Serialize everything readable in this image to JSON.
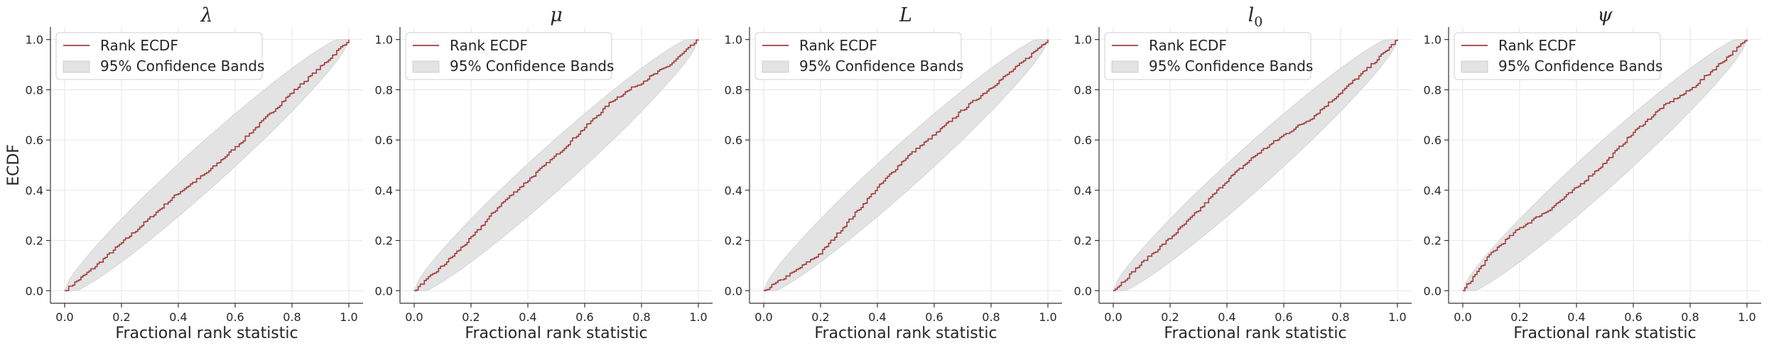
{
  "colors": {
    "ecdf_line": "#a33a3a",
    "band_fill": "#e3e3e3",
    "band_edge": "#c8c8c8",
    "grid": "#e6e6e6",
    "axis": "#333333"
  },
  "chart_data": [
    {
      "type": "line",
      "title": "λ",
      "xlabel": "Fractional rank statistic",
      "ylabel": "ECDF",
      "xlim": [
        -0.05,
        1.05
      ],
      "ylim": [
        -0.05,
        1.05
      ],
      "xticks": [
        "0.0",
        "0.2",
        "0.4",
        "0.6",
        "0.8",
        "1.0"
      ],
      "yticks": [
        "0.0",
        "0.2",
        "0.4",
        "0.6",
        "0.8",
        "1.0"
      ],
      "grid": true,
      "legend": {
        "placement": "top-left",
        "line_label": "Rank ECDF",
        "band_label": "95% Confidence Bands"
      },
      "series": [
        {
          "name": "Rank ECDF",
          "x": [
            0.0,
            0.1,
            0.2,
            0.3,
            0.4,
            0.5,
            0.6,
            0.7,
            0.8,
            0.9,
            1.0
          ],
          "y": [
            0.0,
            0.09,
            0.19,
            0.29,
            0.39,
            0.47,
            0.57,
            0.68,
            0.79,
            0.89,
            1.0
          ]
        }
      ]
    },
    {
      "type": "line",
      "title": "μ",
      "xlabel": "Fractional rank statistic",
      "ylabel": "",
      "xlim": [
        -0.05,
        1.05
      ],
      "ylim": [
        -0.05,
        1.05
      ],
      "xticks": [
        "0.0",
        "0.2",
        "0.4",
        "0.6",
        "0.8",
        "1.0"
      ],
      "yticks": [
        "0.0",
        "0.2",
        "0.4",
        "0.6",
        "0.8",
        "1.0"
      ],
      "grid": true,
      "legend": {
        "placement": "top-left",
        "line_label": "Rank ECDF",
        "band_label": "95% Confidence Bands"
      },
      "series": [
        {
          "name": "Rank ECDF",
          "x": [
            0.0,
            0.1,
            0.2,
            0.3,
            0.4,
            0.5,
            0.6,
            0.7,
            0.8,
            0.9,
            1.0
          ],
          "y": [
            0.0,
            0.1,
            0.21,
            0.34,
            0.44,
            0.54,
            0.65,
            0.76,
            0.83,
            0.9,
            1.0
          ]
        }
      ]
    },
    {
      "type": "line",
      "title": "L",
      "xlabel": "Fractional rank statistic",
      "ylabel": "",
      "xlim": [
        -0.05,
        1.05
      ],
      "ylim": [
        -0.05,
        1.05
      ],
      "xticks": [
        "0.0",
        "0.2",
        "0.4",
        "0.6",
        "0.8",
        "1.0"
      ],
      "yticks": [
        "0.0",
        "0.2",
        "0.4",
        "0.6",
        "0.8",
        "1.0"
      ],
      "grid": true,
      "legend": {
        "placement": "top-left",
        "line_label": "Rank ECDF",
        "band_label": "95% Confidence Bands"
      },
      "series": [
        {
          "name": "Rank ECDF",
          "x": [
            0.0,
            0.1,
            0.2,
            0.3,
            0.4,
            0.5,
            0.6,
            0.7,
            0.8,
            0.9,
            1.0
          ],
          "y": [
            0.0,
            0.07,
            0.15,
            0.28,
            0.41,
            0.53,
            0.62,
            0.72,
            0.81,
            0.9,
            1.0
          ]
        }
      ]
    },
    {
      "type": "line",
      "title": "l0",
      "xlabel": "Fractional rank statistic",
      "ylabel": "",
      "xlim": [
        -0.05,
        1.05
      ],
      "ylim": [
        -0.05,
        1.05
      ],
      "xticks": [
        "0.0",
        "0.2",
        "0.4",
        "0.6",
        "0.8",
        "1.0"
      ],
      "yticks": [
        "0.0",
        "0.2",
        "0.4",
        "0.6",
        "0.8",
        "1.0"
      ],
      "grid": true,
      "legend": {
        "placement": "top-left",
        "line_label": "Rank ECDF",
        "band_label": "95% Confidence Bands"
      },
      "series": [
        {
          "name": "Rank ECDF",
          "x": [
            0.0,
            0.1,
            0.2,
            0.3,
            0.4,
            0.5,
            0.6,
            0.7,
            0.8,
            0.9,
            1.0
          ],
          "y": [
            0.0,
            0.11,
            0.21,
            0.32,
            0.44,
            0.54,
            0.62,
            0.69,
            0.79,
            0.89,
            1.0
          ]
        }
      ]
    },
    {
      "type": "line",
      "title": "ψ",
      "xlabel": "Fractional rank statistic",
      "ylabel": "",
      "xlim": [
        -0.05,
        1.05
      ],
      "ylim": [
        -0.05,
        1.05
      ],
      "xticks": [
        "0.0",
        "0.2",
        "0.4",
        "0.6",
        "0.8",
        "1.0"
      ],
      "yticks": [
        "0.0",
        "0.2",
        "0.4",
        "0.6",
        "0.8",
        "1.0"
      ],
      "grid": true,
      "legend": {
        "placement": "top-left",
        "line_label": "Rank ECDF",
        "band_label": "95% Confidence Bands"
      },
      "series": [
        {
          "name": "Rank ECDF",
          "x": [
            0.0,
            0.1,
            0.2,
            0.3,
            0.4,
            0.5,
            0.6,
            0.7,
            0.8,
            0.9,
            1.0
          ],
          "y": [
            0.0,
            0.15,
            0.25,
            0.32,
            0.41,
            0.51,
            0.63,
            0.73,
            0.8,
            0.9,
            1.0
          ]
        }
      ]
    }
  ]
}
